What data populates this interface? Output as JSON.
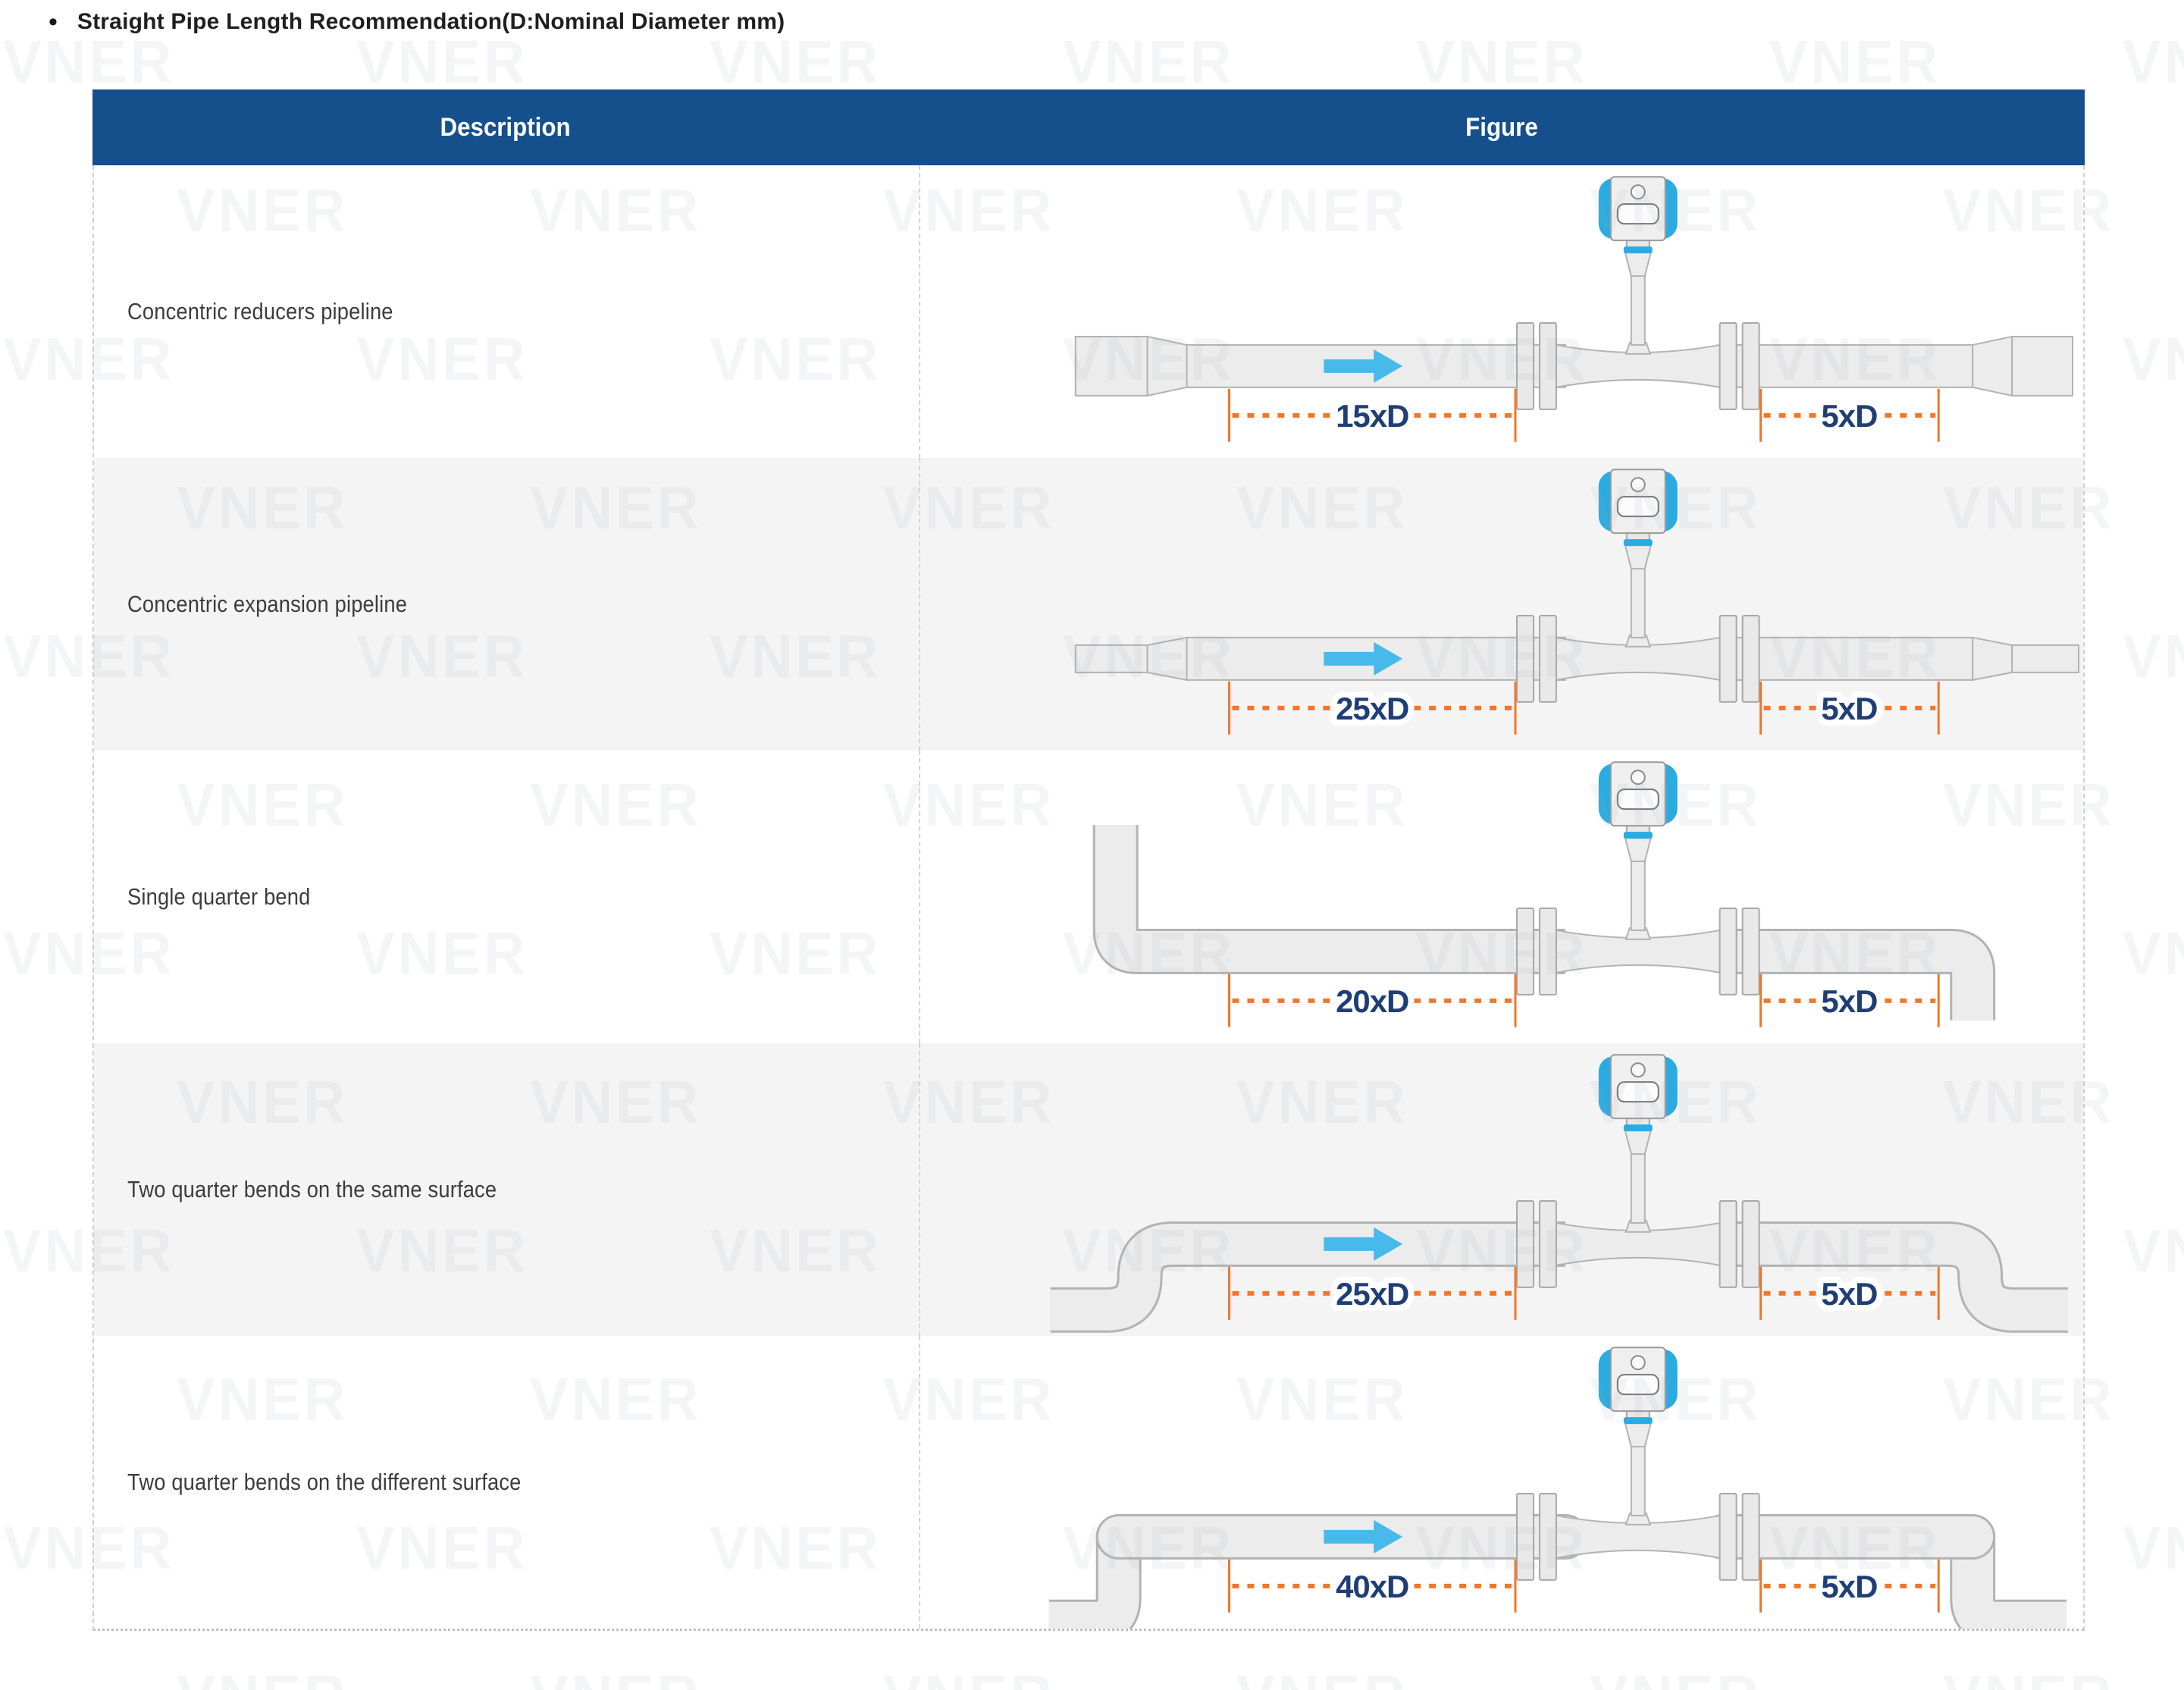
{
  "page": {
    "title_bullet": "•",
    "title": "Straight Pipe Length Recommendation(D:Nominal Diameter mm)"
  },
  "watermark": {
    "text": "VNER"
  },
  "table": {
    "headers": {
      "description": "Description",
      "figure": "Figure"
    },
    "rows": [
      {
        "description": "Concentric reducers pipeline",
        "figure_type": "concentric-reducers-pipeline",
        "upstream_label": "15xD",
        "downstream_label": "5xD",
        "flow_arrow": true
      },
      {
        "description": "Concentric expansion pipeline",
        "figure_type": "concentric-expansion-pipeline",
        "upstream_label": "25xD",
        "downstream_label": "5xD",
        "flow_arrow": true
      },
      {
        "description": "Single quarter bend",
        "figure_type": "single-quarter-bend",
        "upstream_label": "20xD",
        "downstream_label": "5xD",
        "flow_arrow": false
      },
      {
        "description": "Two quarter bends on the same surface",
        "figure_type": "two-quarter-bends-same-surface",
        "upstream_label": "25xD",
        "downstream_label": "5xD",
        "flow_arrow": true
      },
      {
        "description": "Two quarter bends on the different surface",
        "figure_type": "two-quarter-bends-different-surface",
        "upstream_label": "40xD",
        "downstream_label": "5xD",
        "flow_arrow": true
      }
    ],
    "colors": {
      "header_bg": "#15508d",
      "header_text": "#ffffff",
      "pipe_fill": "#ececec",
      "pipe_stroke": "#b2b2b2",
      "meter_blue": "#2aabe2",
      "flow_arrow_blue": "#47b9ea",
      "dimension_orange": "#f2762a",
      "dimension_label_navy": "#1f3e75",
      "row_alt_bg": "#f4f4f4"
    }
  }
}
